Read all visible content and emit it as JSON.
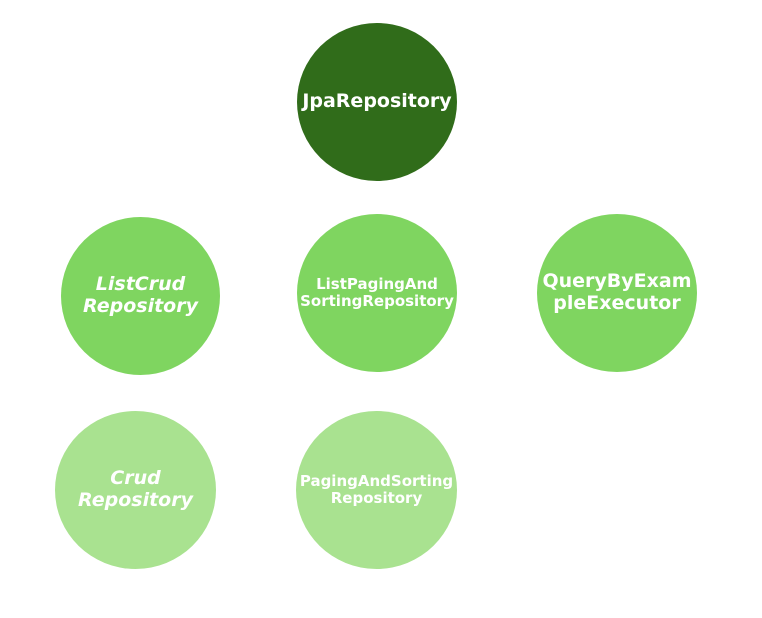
{
  "nodes": {
    "jpa_repository": {
      "lines": [
        "JpaRepository"
      ],
      "color": "#306c1a"
    },
    "list_crud_repository": {
      "lines": [
        "ListCrud",
        "Repository"
      ],
      "color": "#7fd560",
      "italic": true
    },
    "list_paging_and_sorting_repository": {
      "lines": [
        "ListPagingAnd",
        "SortingRepository"
      ],
      "color": "#7fd560"
    },
    "query_by_example_executor": {
      "lines": [
        "QueryByExam",
        "pleExecutor"
      ],
      "color": "#7fd560"
    },
    "crud_repository": {
      "lines": [
        "Crud",
        "Repository"
      ],
      "color": "#a9e290",
      "italic": true
    },
    "paging_and_sorting_repository": {
      "lines": [
        "PagingAndSorting",
        "Repository"
      ],
      "color": "#a9e290"
    }
  }
}
